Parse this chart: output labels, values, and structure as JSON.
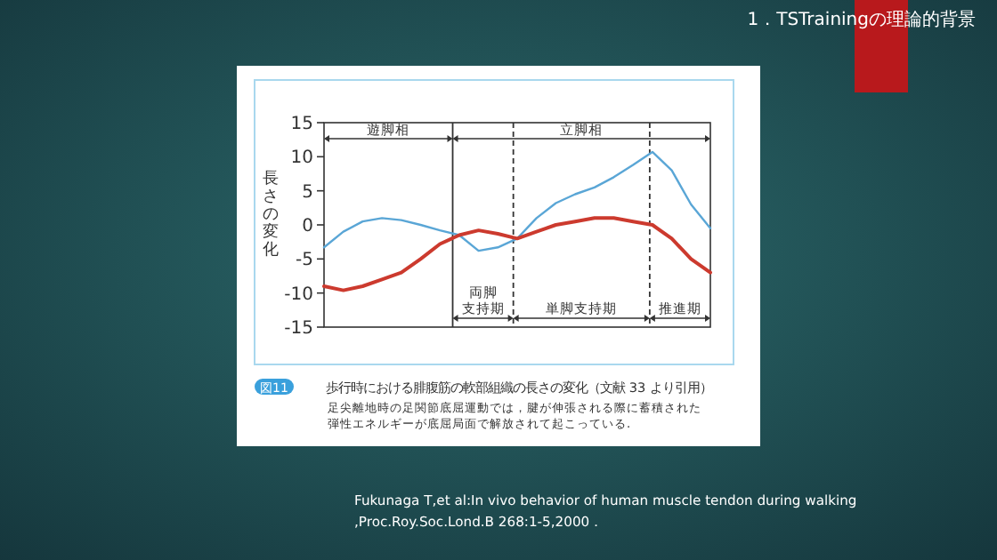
{
  "chart_data": {
    "type": "line",
    "title": "1．TSTrainingの理論的背景",
    "ylabel": "長さの変化",
    "categories": [
      null,
      null,
      null,
      null,
      null,
      null,
      null,
      null,
      null,
      null,
      null,
      null,
      null,
      null,
      null,
      null,
      null,
      null,
      null,
      null,
      null
    ],
    "ylim": [
      -15,
      15
    ],
    "yticks": [
      15,
      10,
      5,
      0,
      -5,
      -10,
      -15
    ],
    "tick_labels": "y",
    "marker": "none",
    "series": [
      {
        "color": "#5aa6d6",
        "values": [
          -3.3,
          -1,
          0.5,
          1,
          0.7,
          0,
          -0.8,
          -1.5,
          -3.8,
          -3.3,
          -2,
          1,
          3.2,
          4.5,
          5.5,
          7,
          8.8,
          10.7,
          8,
          3,
          -0.5
        ]
      },
      {
        "color": "#cc3a2e",
        "values": [
          -9,
          -9.6,
          -9,
          -8,
          -7,
          -5,
          -2.8,
          -1.5,
          -0.8,
          -1.3,
          -2,
          -1,
          0,
          0.5,
          1,
          1,
          0.5,
          0,
          -2,
          -5,
          -7
        ]
      }
    ],
    "annotations": [
      "遊脚相",
      "立脚相",
      "両脚支持期",
      "単脚支持期",
      "推進期",
      "図11",
      "歩行時における腓腹筋の軟部組織の長さの変化（文献 33 より引用）",
      "足尖離地時の足関節底屈運動では，腱が伸張される際に蓄積された弾性エネルギーが底屈局面で解放されて起こっている.",
      "Fukunaga T,et al:In vivo behavior of human muscle tendon during walking\n,Proc.Roy.Soc.Lond.B 268:1-5,2000．"
    ]
  }
}
